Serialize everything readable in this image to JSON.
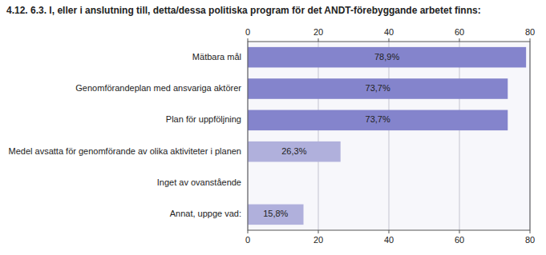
{
  "chart_data": {
    "type": "bar",
    "orientation": "horizontal",
    "title": "4.12. 6.3. I, eller i anslutning till, detta/dessa politiska program för det ANDT-förebyggande arbetet finns:",
    "categories": [
      "Mätbara mål",
      "Genomförandeplan med ansvariga aktörer",
      "Plan för uppföljning",
      "Medel avsatta för genomförande av olika aktiviteter i planen",
      "Inget av ovanstående",
      "Annat, uppge vad:"
    ],
    "values": [
      78.9,
      73.7,
      73.7,
      26.3,
      0.0,
      15.8
    ],
    "value_labels": [
      "78,9%",
      "73,7%",
      "73,7%",
      "26,3%",
      null,
      "15,8%"
    ],
    "colors": [
      "#8484cc",
      "#8484cc",
      "#8484cc",
      "#b0b0dc",
      "#b0b0dc",
      "#b0b0dc"
    ],
    "xlim": [
      0,
      80
    ],
    "xticks": [
      0,
      20,
      40,
      60,
      80
    ],
    "grid": true,
    "data_labels": true
  }
}
